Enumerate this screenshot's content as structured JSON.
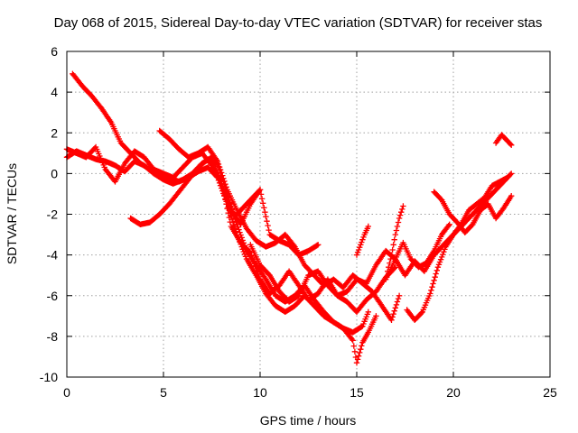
{
  "chart_data": {
    "type": "scatter",
    "title": "Day 068 of 2015, Sidereal Day-to-day VTEC variation (SDTVAR) for receiver stas",
    "xlabel": "GPS time / hours",
    "ylabel": "SDTVAR / TECUs",
    "xlim": [
      0,
      25
    ],
    "ylim": [
      -10,
      6
    ],
    "xticks": [
      "0",
      "5",
      "10",
      "15",
      "20",
      "25"
    ],
    "yticks": [
      "-10",
      "-8",
      "-6",
      "-4",
      "-2",
      "0",
      "2",
      "4",
      "6"
    ],
    "grid": true,
    "marker": "+",
    "marker_color": "#ff0000",
    "series": [
      {
        "x": [
          0.0,
          0.5,
          1.0,
          1.5,
          2.0,
          2.5,
          3.0,
          3.5,
          4.0,
          4.5,
          5.0,
          5.5,
          6.0,
          6.5,
          7.0,
          7.5,
          8.0,
          8.5,
          9.0,
          9.5,
          10.0,
          10.5,
          11.0,
          11.5,
          12.0,
          12.5,
          13.0,
          13.5,
          14.0,
          14.5,
          15.0,
          15.5,
          16.0,
          16.5,
          17.0
        ],
        "y": [
          1.2,
          1.0,
          0.8,
          1.3,
          0.2,
          -0.4,
          0.5,
          1.1,
          0.8,
          0.2,
          0.0,
          -0.2,
          0.3,
          0.8,
          1.0,
          0.4,
          -0.4,
          -2.6,
          -3.4,
          -3.9,
          -5.2,
          -5.9,
          -5.5,
          -4.8,
          -5.5,
          -6.2,
          -5.9,
          -5.2,
          -6.0,
          -6.3,
          -6.8,
          -6.2,
          -5.8,
          -5.1,
          -4.6
        ]
      },
      {
        "x": [
          0.3,
          0.8,
          1.3,
          1.8,
          2.3,
          2.8,
          3.3,
          3.8,
          4.3,
          4.8,
          5.3,
          5.8,
          6.3,
          6.8,
          7.3,
          7.8,
          8.3,
          8.8,
          9.3,
          9.8,
          10.3,
          10.8,
          11.3,
          11.8,
          12.3,
          12.8,
          13.3,
          13.8,
          14.3,
          14.8,
          15.3,
          15.6
        ],
        "y": [
          4.9,
          4.3,
          3.8,
          3.2,
          2.5,
          1.5,
          1.0,
          0.5,
          0.2,
          0.0,
          -0.2,
          -0.4,
          -0.2,
          0.1,
          0.3,
          -0.2,
          -1.5,
          -3.0,
          -4.2,
          -5.0,
          -5.9,
          -6.5,
          -6.8,
          -6.5,
          -6.0,
          -6.5,
          -7.0,
          -7.3,
          -7.6,
          -7.8,
          -7.5,
          -6.8
        ]
      },
      {
        "x": [
          3.3,
          3.8,
          4.3,
          4.8,
          5.3,
          5.8,
          6.3,
          6.8,
          7.3,
          7.8,
          8.3,
          8.8,
          9.3,
          9.8,
          10.3,
          10.8,
          11.3,
          11.8,
          12.3,
          12.8,
          13.3,
          13.8,
          14.3,
          14.8,
          15.0,
          15.3,
          15.6,
          16.0
        ],
        "y": [
          -2.2,
          -2.5,
          -2.4,
          -2.0,
          -1.5,
          -0.9,
          -0.3,
          0.3,
          0.7,
          0.5,
          -1.0,
          -2.5,
          -3.8,
          -4.5,
          -5.2,
          -6.0,
          -6.3,
          -6.0,
          -5.5,
          -6.2,
          -6.8,
          -7.3,
          -7.6,
          -8.2,
          -9.3,
          -8.3,
          -7.8,
          -7.0
        ]
      },
      {
        "x": [
          4.8,
          5.3,
          5.8,
          6.3,
          6.8,
          7.3,
          7.8,
          8.3,
          8.8,
          9.3,
          9.8,
          10.3,
          10.8,
          11.3,
          11.8,
          12.3,
          12.8,
          13.3,
          13.8,
          14.3,
          14.8,
          15.3,
          15.8,
          16.3,
          16.8,
          17.2
        ],
        "y": [
          2.1,
          1.7,
          1.2,
          0.8,
          1.0,
          1.3,
          0.6,
          -0.8,
          -1.8,
          -2.7,
          -3.3,
          -3.6,
          -3.4,
          -3.0,
          -3.6,
          -4.5,
          -5.0,
          -5.5,
          -5.2,
          -5.6,
          -5.0,
          -5.4,
          -5.8,
          -6.5,
          -7.2,
          -6.0
        ]
      },
      {
        "x": [
          0.0,
          0.5,
          1.0,
          1.5,
          2.0,
          2.5,
          3.0,
          3.5,
          4.0,
          4.5,
          5.0,
          5.5,
          6.0,
          6.5,
          7.0,
          7.5,
          8.0,
          8.5,
          9.0,
          9.5,
          10.0,
          10.5,
          11.0,
          11.5,
          12.0,
          12.5,
          13.0
        ],
        "y": [
          0.8,
          1.1,
          0.9,
          0.7,
          0.6,
          0.4,
          0.1,
          0.6,
          0.4,
          0.0,
          -0.3,
          -0.5,
          -0.3,
          0.0,
          0.5,
          0.8,
          -0.5,
          -1.8,
          -2.5,
          -1.5,
          -0.8,
          -3.0,
          -3.3,
          -3.5,
          -4.0,
          -3.8,
          -3.5
        ]
      },
      {
        "x": [
          9.5,
          10.0,
          10.5,
          11.0,
          11.5,
          12.0,
          12.5,
          13.0,
          13.5,
          14.0,
          14.5,
          15.0,
          15.5,
          16.0,
          16.5,
          17.0,
          17.5,
          18.0,
          18.5,
          19.0,
          19.5,
          20.0,
          20.5,
          21.0,
          21.5,
          22.0,
          22.5,
          23.0
        ],
        "y": [
          -3.5,
          -4.5,
          -5.0,
          -5.8,
          -6.3,
          -6.0,
          -5.0,
          -4.8,
          -5.5,
          -6.0,
          -5.8,
          -5.2,
          -5.4,
          -4.5,
          -3.8,
          -4.2,
          -5.0,
          -4.3,
          -4.8,
          -4.0,
          -3.5,
          -3.0,
          -2.5,
          -2.0,
          -1.5,
          -1.0,
          -0.5,
          0.0
        ]
      },
      {
        "x": [
          17.6,
          18.0,
          18.4,
          18.8,
          19.2,
          19.6,
          20.0,
          20.4,
          20.8,
          21.2,
          21.6,
          22.0,
          22.4,
          22.8
        ],
        "y": [
          -6.7,
          -7.2,
          -6.8,
          -5.9,
          -4.6,
          -3.6,
          -3.0,
          -2.5,
          -1.8,
          -1.5,
          -1.2,
          -0.6,
          -0.4,
          -0.2
        ]
      },
      {
        "x": [
          19.0,
          19.4,
          19.8,
          20.2,
          20.6,
          21.0,
          21.4,
          21.8,
          22.2,
          22.6,
          23.0
        ],
        "y": [
          -0.9,
          -1.3,
          -2.0,
          -2.4,
          -2.9,
          -2.5,
          -1.8,
          -1.5,
          -2.2,
          -1.7,
          -1.1
        ]
      },
      {
        "x": [
          16.5,
          17.0,
          17.4,
          17.8,
          18.2,
          18.6,
          19.0,
          19.4,
          19.8
        ],
        "y": [
          -5.2,
          -4.2,
          -3.4,
          -4.2,
          -4.6,
          -4.4,
          -3.8,
          -3.0,
          -2.5
        ]
      },
      {
        "x": [
          22.2,
          22.5,
          22.8,
          23.0
        ],
        "y": [
          1.5,
          1.9,
          1.6,
          1.4
        ]
      },
      {
        "x": [
          15.0,
          15.2,
          15.4,
          15.6
        ],
        "y": [
          -4.0,
          -3.5,
          -3.0,
          -2.6
        ]
      },
      {
        "x": [
          16.6,
          16.8,
          17.0,
          17.2,
          17.4
        ],
        "y": [
          -4.8,
          -4.0,
          -3.0,
          -2.2,
          -1.6
        ]
      },
      {
        "x": [
          8.8,
          9.2,
          9.6,
          10.0
        ],
        "y": [
          -2.0,
          -1.6,
          -1.2,
          -0.8
        ]
      }
    ]
  }
}
